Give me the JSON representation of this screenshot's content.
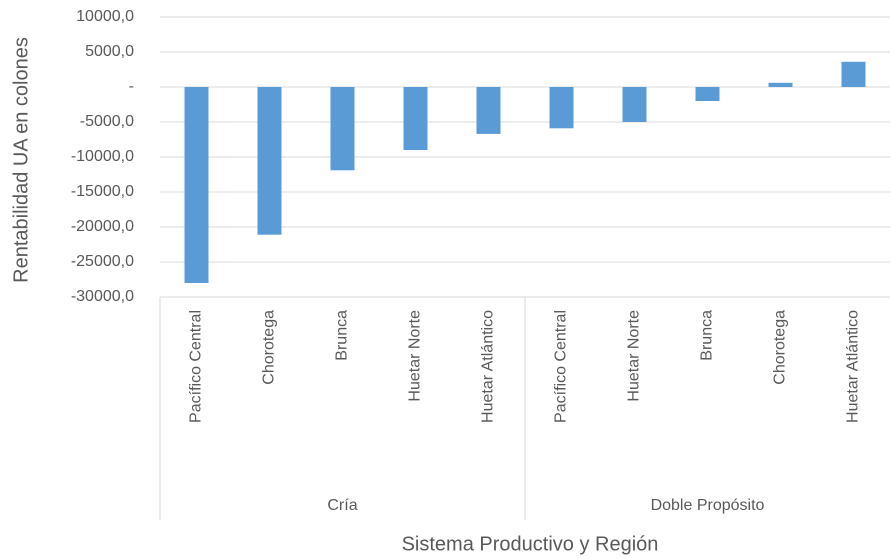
{
  "chart_data": {
    "type": "bar",
    "y_label": "Rentabilidad UA en colones",
    "x_label": "Sistema Productivo y Región",
    "color": "#5b9bd5",
    "grid": true,
    "ylim": [
      -30000,
      10000
    ],
    "yticks": [
      {
        "value": -30000,
        "label": "-30000,0"
      },
      {
        "value": -25000,
        "label": "-25000,0"
      },
      {
        "value": -20000,
        "label": "-20000,0"
      },
      {
        "value": -15000,
        "label": "-15000,0"
      },
      {
        "value": -10000,
        "label": "-10000,0"
      },
      {
        "value": -5000,
        "label": "-5000,0"
      },
      {
        "value": 0,
        "label": "-"
      },
      {
        "value": 5000,
        "label": "5000,0"
      },
      {
        "value": 10000,
        "label": "10000,0"
      }
    ],
    "groups": [
      {
        "name": "Cría",
        "categories": [
          "Pacífico Central",
          "Chorotega",
          "Brunca",
          "Huetar Norte",
          "Huetar Atlántico"
        ],
        "values": [
          -28000,
          -21100,
          -11900,
          -9000,
          -6700
        ]
      },
      {
        "name": "Doble Propósito",
        "categories": [
          "Pacífico Central",
          "Huetar Norte",
          "Brunca",
          "Chorotega",
          "Huetar Atlántico"
        ],
        "values": [
          -5900,
          -5000,
          -2000,
          600,
          3600
        ]
      }
    ]
  }
}
